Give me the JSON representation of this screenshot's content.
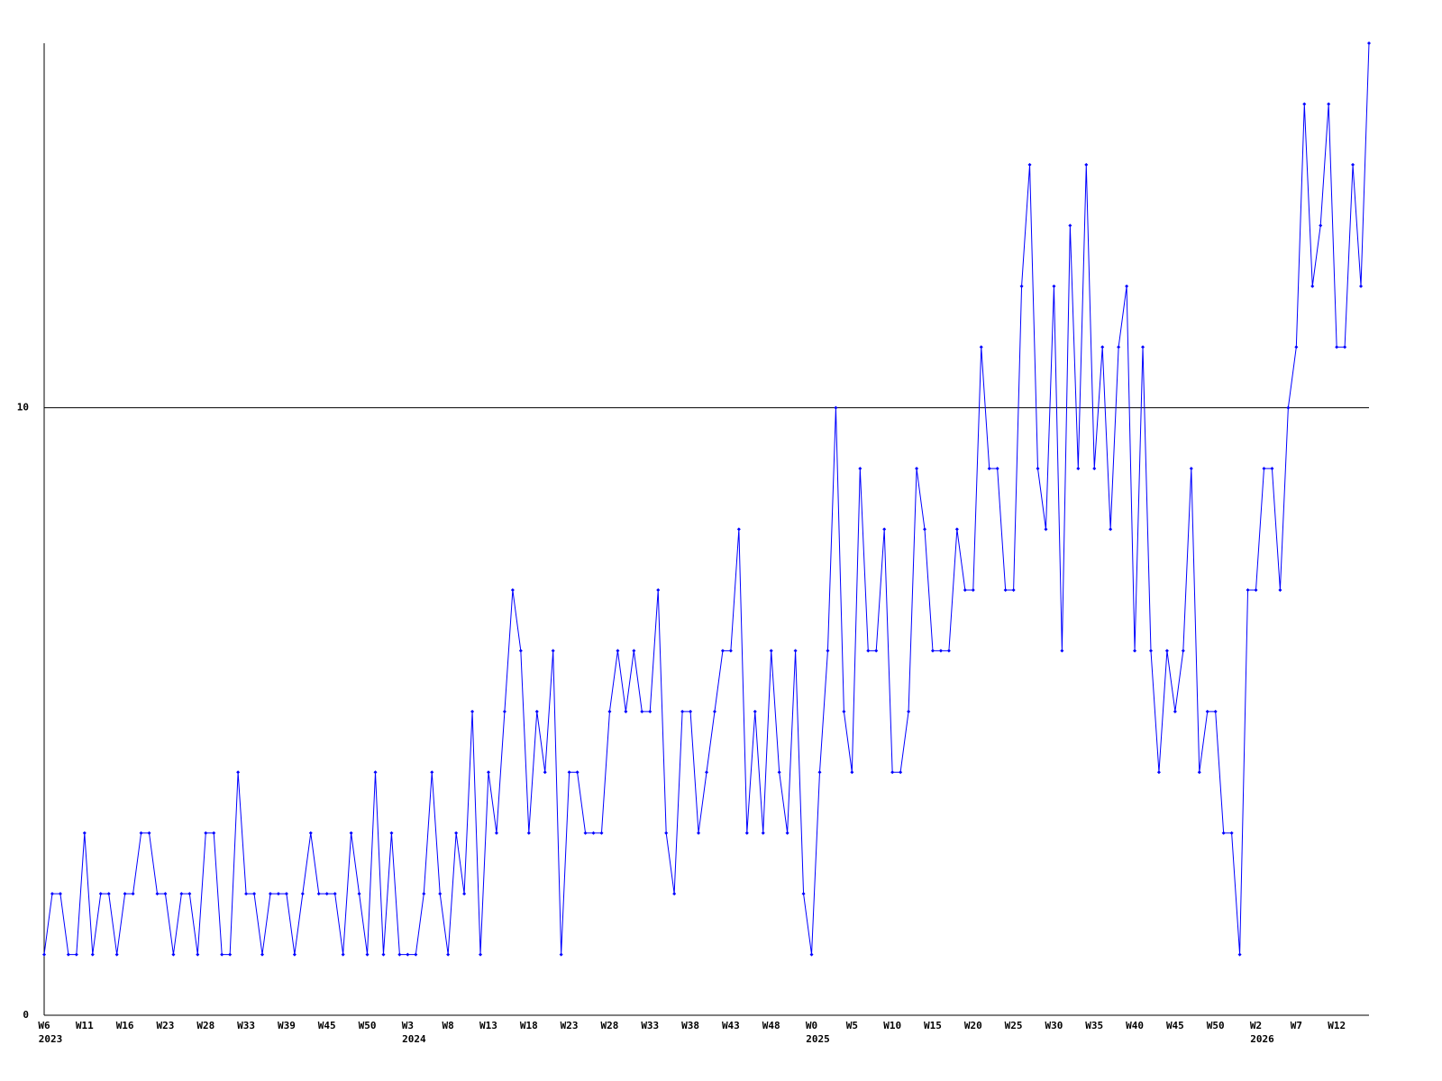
{
  "chart_data": {
    "type": "line",
    "categories": [
      "W6",
      null,
      null,
      null,
      null,
      "W11",
      null,
      null,
      null,
      null,
      "W16",
      null,
      null,
      null,
      null,
      "W23",
      null,
      null,
      null,
      null,
      "W28",
      null,
      null,
      null,
      null,
      "W33",
      null,
      null,
      null,
      null,
      "W39",
      null,
      null,
      null,
      null,
      "W45",
      null,
      null,
      null,
      null,
      "W50",
      null,
      null,
      null,
      null,
      "W3",
      null,
      null,
      null,
      null,
      "W8",
      null,
      null,
      null,
      null,
      "W13",
      null,
      null,
      null,
      null,
      "W18",
      null,
      null,
      null,
      null,
      "W23",
      null,
      null,
      null,
      null,
      "W28",
      null,
      null,
      null,
      null,
      "W33",
      null,
      null,
      null,
      null,
      "W38",
      null,
      null,
      null,
      null,
      "W43",
      null,
      null,
      null,
      null,
      "W48",
      null,
      null,
      null,
      null,
      "W0",
      null,
      null,
      null,
      null,
      "W5",
      null,
      null,
      null,
      null,
      "W10",
      null,
      null,
      null,
      null,
      "W15",
      null,
      null,
      null,
      null,
      "W20",
      null,
      null,
      null,
      null,
      "W25",
      null,
      null,
      null,
      null,
      "W30",
      null,
      null,
      null,
      null,
      "W35",
      null,
      null,
      null,
      null,
      "W40",
      null,
      null,
      null,
      null,
      "W45",
      null,
      null,
      null,
      null,
      "W50",
      null,
      null,
      null,
      null,
      "W2",
      null,
      null,
      null,
      null,
      "W7",
      null,
      null,
      null,
      null,
      "W12",
      null,
      null,
      null,
      null
    ],
    "year_labels": [
      "2023",
      null,
      null,
      null,
      null,
      null,
      null,
      null,
      null,
      null,
      null,
      null,
      null,
      null,
      null,
      null,
      null,
      null,
      null,
      null,
      null,
      null,
      null,
      null,
      null,
      null,
      null,
      null,
      null,
      null,
      null,
      null,
      null,
      null,
      null,
      null,
      null,
      null,
      null,
      null,
      null,
      null,
      null,
      null,
      null,
      "2024",
      null,
      null,
      null,
      null,
      null,
      null,
      null,
      null,
      null,
      null,
      null,
      null,
      null,
      null,
      null,
      null,
      null,
      null,
      null,
      null,
      null,
      null,
      null,
      null,
      null,
      null,
      null,
      null,
      null,
      null,
      null,
      null,
      null,
      null,
      null,
      null,
      null,
      null,
      null,
      null,
      null,
      null,
      null,
      null,
      null,
      null,
      null,
      null,
      null,
      "2025",
      null,
      null,
      null,
      null,
      null,
      null,
      null,
      null,
      null,
      null,
      null,
      null,
      null,
      null,
      null,
      null,
      null,
      null,
      null,
      null,
      null,
      null,
      null,
      null,
      null,
      null,
      null,
      null,
      null,
      null,
      null,
      null,
      null,
      null,
      null,
      null,
      null,
      null,
      null,
      null,
      null,
      null,
      null,
      null,
      null,
      null,
      null,
      null,
      null,
      null,
      null,
      null,
      null,
      null,
      "2026",
      null,
      null,
      null,
      null,
      null,
      null,
      null,
      null,
      null,
      null,
      null,
      null,
      null,
      null
    ],
    "series": [
      {
        "color": "#0000ff",
        "values": [
          1,
          2,
          2,
          1,
          1,
          3,
          1,
          2,
          2,
          1,
          2,
          2,
          3,
          3,
          2,
          2,
          1,
          2,
          2,
          1,
          3,
          3,
          1,
          1,
          4,
          2,
          2,
          1,
          2,
          2,
          2,
          1,
          2,
          3,
          2,
          2,
          2,
          1,
          3,
          2,
          1,
          4,
          1,
          3,
          1,
          1,
          1,
          2,
          4,
          2,
          1,
          3,
          2,
          5,
          1,
          4,
          3,
          5,
          7,
          6,
          3,
          5,
          4,
          6,
          1,
          4,
          4,
          3,
          3,
          3,
          5,
          6,
          5,
          6,
          5,
          5,
          7,
          3,
          2,
          5,
          5,
          3,
          4,
          5,
          6,
          6,
          8,
          3,
          5,
          3,
          6,
          4,
          3,
          6,
          2,
          1,
          4,
          6,
          10,
          5,
          4,
          9,
          6,
          6,
          8,
          4,
          4,
          5,
          9,
          8,
          6,
          6,
          6,
          8,
          7,
          7,
          11,
          9,
          9,
          7,
          7,
          12,
          14,
          9,
          8,
          12,
          6,
          13,
          9,
          14,
          9,
          11,
          8,
          11,
          12,
          6,
          11,
          6,
          4,
          6,
          5,
          6,
          9,
          4,
          5,
          5,
          3,
          3,
          1,
          7,
          7,
          9,
          9,
          7,
          10,
          11,
          15,
          12,
          13,
          15,
          11,
          11,
          14,
          12,
          16
        ]
      }
    ],
    "ylim": [
      0,
      16
    ],
    "yticks": [
      0,
      10
    ],
    "grid": true
  }
}
